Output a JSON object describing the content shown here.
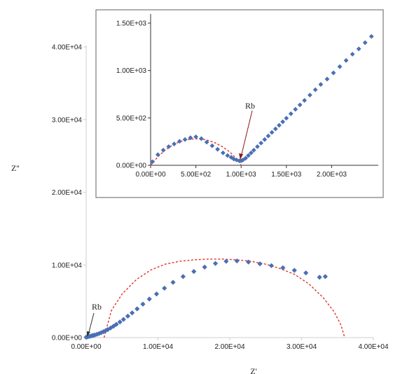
{
  "chart_data": [
    {
      "type": "scatter",
      "xlabel": "Z'",
      "ylabel": "Z''",
      "xlim": [
        0,
        40000
      ],
      "ylim": [
        0,
        40000
      ],
      "x_ticks": [
        "0.00E+00",
        "1.00E+04",
        "2.00E+04",
        "3.00E+04",
        "4.00E+04"
      ],
      "y_ticks": [
        "0.00E+00",
        "1.00E+04",
        "2.00E+04",
        "3.00E+04",
        "4.00E+04"
      ],
      "annotation": "Rb",
      "grid": false,
      "marker_color": "#4a6fb5",
      "fit_color": "#e0352b",
      "series": [
        {
          "x": [
            0,
            200,
            400,
            600,
            800,
            1000,
            1200,
            1500,
            1800,
            2100,
            2400,
            2700,
            3000,
            3400,
            3800,
            4200,
            4700,
            5200,
            5800,
            6400,
            7100,
            7900,
            8800,
            9800,
            10900,
            12100,
            13500,
            15000,
            16500,
            18000,
            19500,
            21000,
            22600,
            24200,
            25800,
            27400,
            29000,
            30600,
            32500,
            33300
          ],
          "y": [
            50,
            100,
            150,
            200,
            250,
            300,
            350,
            450,
            560,
            680,
            810,
            950,
            1100,
            1320,
            1560,
            1820,
            2150,
            2500,
            2950,
            3400,
            3950,
            4600,
            5300,
            6000,
            6800,
            7600,
            8400,
            9100,
            9700,
            10200,
            10500,
            10550,
            10400,
            10150,
            9900,
            9600,
            9250,
            8900,
            8300,
            8400
          ]
        }
      ],
      "fit": {
        "x": [
          2500,
          3500,
          5000,
          7000,
          9000,
          11000,
          13000,
          15000,
          17000,
          19000,
          21000,
          23000,
          25000,
          27000,
          29000,
          31000,
          33000,
          34500,
          35500,
          36000
        ],
        "y": [
          0,
          3700,
          6000,
          8000,
          9300,
          10100,
          10500,
          10700,
          10800,
          10800,
          10700,
          10500,
          10100,
          9500,
          8700,
          7400,
          5500,
          3600,
          1700,
          0
        ]
      }
    },
    {
      "type": "scatter",
      "inset": true,
      "xlim": [
        0,
        2500
      ],
      "ylim": [
        0,
        1600
      ],
      "x_ticks": [
        "0.00E+00",
        "5.00E+02",
        "1.00E+03",
        "1.50E+03",
        "2.00E+03"
      ],
      "y_ticks": [
        "0.00E+00",
        "5.00E+02",
        "1.00E+03",
        "1.50E+03"
      ],
      "annotation": "Rb",
      "grid": false,
      "series": [
        {
          "x": [
            20,
            80,
            140,
            200,
            260,
            320,
            380,
            440,
            500,
            560,
            620,
            680,
            740,
            800,
            850,
            890,
            920,
            950,
            980,
            1000,
            1020,
            1050,
            1080,
            1110,
            1140,
            1180,
            1220,
            1260,
            1300,
            1340,
            1380,
            1420,
            1460,
            1500,
            1550,
            1600,
            1650,
            1700,
            1760,
            1820,
            1880,
            1950,
            2020,
            2090,
            2160,
            2230,
            2300,
            2370,
            2440
          ],
          "y": [
            40,
            120,
            170,
            210,
            240,
            270,
            290,
            310,
            320,
            300,
            260,
            220,
            180,
            140,
            110,
            90,
            70,
            60,
            50,
            50,
            60,
            80,
            110,
            140,
            170,
            210,
            250,
            290,
            330,
            370,
            410,
            450,
            490,
            530,
            580,
            630,
            680,
            730,
            790,
            850,
            910,
            970,
            1040,
            1110,
            1180,
            1250,
            1310,
            1380,
            1450
          ]
        }
      ],
      "fit": {
        "x": [
          0,
          80,
          160,
          240,
          320,
          400,
          480,
          560,
          640,
          720,
          800,
          880,
          960,
          1000
        ],
        "y": [
          0,
          95,
          170,
          225,
          265,
          288,
          298,
          296,
          280,
          250,
          205,
          145,
          60,
          0
        ]
      }
    }
  ]
}
